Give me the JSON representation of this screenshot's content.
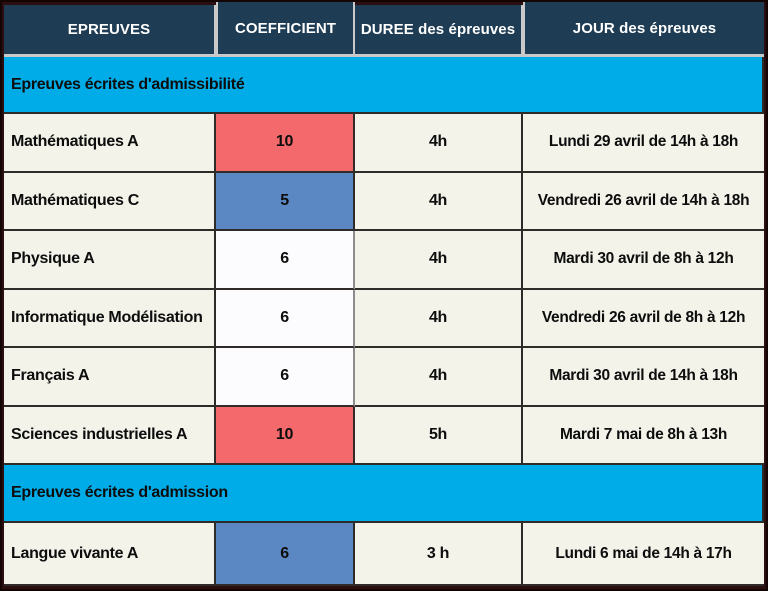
{
  "table": {
    "headers": [
      "EPREUVES",
      "COEFFICIENT",
      "DUREE des épreuves",
      "JOUR des épreuves"
    ],
    "sections": [
      {
        "title": "Epreuves écrites d'admissibilité",
        "rows": [
          {
            "epreuve": "Mathématiques A",
            "coefficient": "10",
            "coef_color": "red",
            "duree": "4h",
            "jour": "Lundi 29 avril de 14h à 18h"
          },
          {
            "epreuve": "Mathématiques C",
            "coefficient": "5",
            "coef_color": "blue",
            "duree": "4h",
            "jour": "Vendredi 26 avril de 14h à 18h"
          },
          {
            "epreuve": "Physique A",
            "coefficient": "6",
            "coef_color": "white",
            "duree": "4h",
            "jour": "Mardi 30 avril de 8h à 12h"
          },
          {
            "epreuve": "Informatique Modélisation",
            "coefficient": "6",
            "coef_color": "white",
            "duree": "4h",
            "jour": "Vendredi 26 avril de 8h à 12h"
          },
          {
            "epreuve": "Français A",
            "coefficient": "6",
            "coef_color": "white",
            "duree": "4h",
            "jour": "Mardi 30 avril de 14h à 18h"
          },
          {
            "epreuve": "Sciences industrielles A",
            "coefficient": "10",
            "coef_color": "red",
            "duree": "5h",
            "jour": "Mardi 7 mai de 8h à 13h"
          }
        ]
      },
      {
        "title": "Epreuves écrites d'admission",
        "rows": [
          {
            "epreuve": "Langue vivante A",
            "coefficient": "6",
            "coef_color": "blue",
            "duree": "3 h",
            "jour": "Lundi 6 mai de 14h à 17h"
          }
        ]
      }
    ]
  },
  "colors": {
    "maroon": "#2b0f10",
    "navy": "#1e3c54",
    "cyan": "#00ace8",
    "red": "#f4696c",
    "blue": "#5b87c3",
    "cream": "#f3f3ea",
    "white-cell": "#fcfcfe",
    "ink": "#0d0d0d"
  }
}
